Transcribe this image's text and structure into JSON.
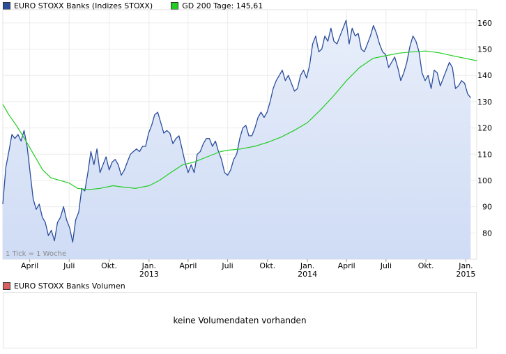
{
  "legend": {
    "price_label": "EURO STOXX Banks (Indizes STOXX)",
    "ma_label": "GD 200 Tage: 145,61",
    "price_color": "#2a4d9c",
    "ma_color": "#22cc22"
  },
  "volume": {
    "legend_label": "EURO STOXX Banks Volumen",
    "legend_color": "#d96060",
    "message": "keine Volumendaten vorhanden"
  },
  "footnote": "1 Tick = 1 Woche",
  "chart_data": {
    "type": "line",
    "title": "",
    "xlabel": "",
    "ylabel": "",
    "ylim": [
      70,
      165
    ],
    "y_ticks": [
      80,
      90,
      100,
      110,
      120,
      130,
      140,
      150,
      160
    ],
    "x_range": [
      "2012-01-30",
      "2015-01-26"
    ],
    "x_ticks": [
      {
        "date": "2012-04-01",
        "label": "April",
        "sub": ""
      },
      {
        "date": "2012-07-01",
        "label": "Juli",
        "sub": ""
      },
      {
        "date": "2012-10-01",
        "label": "Okt.",
        "sub": ""
      },
      {
        "date": "2013-01-01",
        "label": "Jan.",
        "sub": "2013"
      },
      {
        "date": "2013-04-01",
        "label": "April",
        "sub": ""
      },
      {
        "date": "2013-07-01",
        "label": "Juli",
        "sub": ""
      },
      {
        "date": "2013-10-01",
        "label": "Okt.",
        "sub": ""
      },
      {
        "date": "2014-01-01",
        "label": "Jan.",
        "sub": "2014"
      },
      {
        "date": "2014-04-01",
        "label": "April",
        "sub": ""
      },
      {
        "date": "2014-07-01",
        "label": "Juli",
        "sub": ""
      },
      {
        "date": "2014-10-01",
        "label": "Okt.",
        "sub": ""
      },
      {
        "date": "2015-01-01",
        "label": "Jan.",
        "sub": "2015"
      }
    ],
    "grid": true,
    "series": [
      {
        "name": "EURO STOXX Banks (Indizes STOXX)",
        "color": "#2a4d9c",
        "fill": "#dde8fa",
        "points": [
          [
            "2012-01-30",
            91
          ],
          [
            "2012-02-06",
            105
          ],
          [
            "2012-02-13",
            111
          ],
          [
            "2012-02-20",
            117.5
          ],
          [
            "2012-02-27",
            116
          ],
          [
            "2012-03-05",
            117.5
          ],
          [
            "2012-03-12",
            115
          ],
          [
            "2012-03-19",
            119
          ],
          [
            "2012-03-26",
            113
          ],
          [
            "2012-04-02",
            103
          ],
          [
            "2012-04-09",
            93
          ],
          [
            "2012-04-16",
            89
          ],
          [
            "2012-04-23",
            91
          ],
          [
            "2012-04-30",
            86
          ],
          [
            "2012-05-07",
            84
          ],
          [
            "2012-05-14",
            79
          ],
          [
            "2012-05-21",
            81
          ],
          [
            "2012-05-28",
            77
          ],
          [
            "2012-06-04",
            84
          ],
          [
            "2012-06-11",
            86
          ],
          [
            "2012-06-18",
            90
          ],
          [
            "2012-06-25",
            85
          ],
          [
            "2012-07-02",
            82
          ],
          [
            "2012-07-09",
            76.5
          ],
          [
            "2012-07-16",
            85
          ],
          [
            "2012-07-23",
            88
          ],
          [
            "2012-07-30",
            97
          ],
          [
            "2012-08-06",
            96
          ],
          [
            "2012-08-13",
            103
          ],
          [
            "2012-08-20",
            111
          ],
          [
            "2012-08-27",
            106
          ],
          [
            "2012-09-03",
            112
          ],
          [
            "2012-09-10",
            103
          ],
          [
            "2012-09-17",
            106
          ],
          [
            "2012-09-24",
            109
          ],
          [
            "2012-10-01",
            104
          ],
          [
            "2012-10-08",
            107
          ],
          [
            "2012-10-15",
            108
          ],
          [
            "2012-10-22",
            106
          ],
          [
            "2012-10-29",
            102
          ],
          [
            "2012-11-05",
            104
          ],
          [
            "2012-11-12",
            107
          ],
          [
            "2012-11-19",
            110
          ],
          [
            "2012-11-26",
            111
          ],
          [
            "2012-12-03",
            112
          ],
          [
            "2012-12-10",
            111
          ],
          [
            "2012-12-17",
            113
          ],
          [
            "2012-12-24",
            113
          ],
          [
            "2012-12-31",
            118
          ],
          [
            "2013-01-07",
            121
          ],
          [
            "2013-01-14",
            125
          ],
          [
            "2013-01-21",
            126
          ],
          [
            "2013-01-28",
            122
          ],
          [
            "2013-02-04",
            118
          ],
          [
            "2013-02-11",
            119
          ],
          [
            "2013-02-18",
            118
          ],
          [
            "2013-02-25",
            114
          ],
          [
            "2013-03-04",
            116
          ],
          [
            "2013-03-11",
            117
          ],
          [
            "2013-03-18",
            112
          ],
          [
            "2013-03-25",
            107
          ],
          [
            "2013-04-01",
            103
          ],
          [
            "2013-04-08",
            106
          ],
          [
            "2013-04-15",
            103
          ],
          [
            "2013-04-22",
            110
          ],
          [
            "2013-04-29",
            111
          ],
          [
            "2013-05-06",
            114
          ],
          [
            "2013-05-13",
            116
          ],
          [
            "2013-05-20",
            116
          ],
          [
            "2013-05-27",
            113
          ],
          [
            "2013-06-03",
            115
          ],
          [
            "2013-06-10",
            111
          ],
          [
            "2013-06-17",
            108
          ],
          [
            "2013-06-24",
            103
          ],
          [
            "2013-07-01",
            102
          ],
          [
            "2013-07-08",
            104
          ],
          [
            "2013-07-15",
            108
          ],
          [
            "2013-07-22",
            110
          ],
          [
            "2013-07-29",
            116
          ],
          [
            "2013-08-05",
            120
          ],
          [
            "2013-08-12",
            121
          ],
          [
            "2013-08-19",
            117
          ],
          [
            "2013-08-26",
            117
          ],
          [
            "2013-09-02",
            120
          ],
          [
            "2013-09-09",
            124
          ],
          [
            "2013-09-16",
            126
          ],
          [
            "2013-09-23",
            124
          ],
          [
            "2013-09-30",
            126
          ],
          [
            "2013-10-07",
            130
          ],
          [
            "2013-10-14",
            135
          ],
          [
            "2013-10-21",
            138
          ],
          [
            "2013-10-28",
            140
          ],
          [
            "2013-11-04",
            142
          ],
          [
            "2013-11-11",
            138
          ],
          [
            "2013-11-18",
            140
          ],
          [
            "2013-11-25",
            137
          ],
          [
            "2013-12-02",
            134
          ],
          [
            "2013-12-09",
            135
          ],
          [
            "2013-12-16",
            140
          ],
          [
            "2013-12-23",
            142
          ],
          [
            "2013-12-30",
            139
          ],
          [
            "2014-01-06",
            144
          ],
          [
            "2014-01-13",
            152
          ],
          [
            "2014-01-20",
            155
          ],
          [
            "2014-01-27",
            149
          ],
          [
            "2014-02-03",
            150
          ],
          [
            "2014-02-10",
            155
          ],
          [
            "2014-02-17",
            153
          ],
          [
            "2014-02-24",
            158
          ],
          [
            "2014-03-03",
            153
          ],
          [
            "2014-03-10",
            152
          ],
          [
            "2014-03-17",
            155
          ],
          [
            "2014-03-24",
            158
          ],
          [
            "2014-03-31",
            161
          ],
          [
            "2014-04-07",
            152
          ],
          [
            "2014-04-14",
            158
          ],
          [
            "2014-04-21",
            155
          ],
          [
            "2014-04-28",
            156
          ],
          [
            "2014-05-05",
            150
          ],
          [
            "2014-05-12",
            149
          ],
          [
            "2014-05-19",
            152
          ],
          [
            "2014-05-26",
            155
          ],
          [
            "2014-06-02",
            159
          ],
          [
            "2014-06-09",
            156
          ],
          [
            "2014-06-16",
            152
          ],
          [
            "2014-06-23",
            149
          ],
          [
            "2014-06-30",
            148
          ],
          [
            "2014-07-07",
            143
          ],
          [
            "2014-07-14",
            145
          ],
          [
            "2014-07-21",
            147
          ],
          [
            "2014-07-28",
            143
          ],
          [
            "2014-08-04",
            138
          ],
          [
            "2014-08-11",
            141
          ],
          [
            "2014-08-18",
            145
          ],
          [
            "2014-08-25",
            151
          ],
          [
            "2014-09-01",
            155
          ],
          [
            "2014-09-08",
            153
          ],
          [
            "2014-09-15",
            149
          ],
          [
            "2014-09-22",
            141
          ],
          [
            "2014-09-29",
            138
          ],
          [
            "2014-10-06",
            140
          ],
          [
            "2014-10-13",
            135
          ],
          [
            "2014-10-20",
            142
          ],
          [
            "2014-10-27",
            141
          ],
          [
            "2014-11-03",
            136
          ],
          [
            "2014-11-10",
            139
          ],
          [
            "2014-11-17",
            142
          ],
          [
            "2014-11-24",
            145
          ],
          [
            "2014-12-01",
            143
          ],
          [
            "2014-12-08",
            135
          ],
          [
            "2014-12-15",
            136
          ],
          [
            "2014-12-22",
            138
          ],
          [
            "2014-12-29",
            137
          ],
          [
            "2015-01-05",
            133
          ],
          [
            "2015-01-12",
            131.5
          ]
        ]
      },
      {
        "name": "GD 200 Tage: 145,61",
        "color": "#22cc22",
        "points": [
          [
            "2012-01-30",
            129
          ],
          [
            "2012-02-13",
            125
          ],
          [
            "2012-03-01",
            121
          ],
          [
            "2012-03-20",
            116
          ],
          [
            "2012-04-10",
            110
          ],
          [
            "2012-05-01",
            104
          ],
          [
            "2012-05-20",
            101
          ],
          [
            "2012-06-10",
            100
          ],
          [
            "2012-07-01",
            99
          ],
          [
            "2012-07-20",
            97
          ],
          [
            "2012-08-15",
            96.5
          ],
          [
            "2012-09-10",
            97
          ],
          [
            "2012-10-10",
            98
          ],
          [
            "2012-11-01",
            97.5
          ],
          [
            "2012-12-01",
            97
          ],
          [
            "2013-01-01",
            98
          ],
          [
            "2013-01-25",
            100
          ],
          [
            "2013-02-20",
            103
          ],
          [
            "2013-03-20",
            106
          ],
          [
            "2013-04-15",
            107
          ],
          [
            "2013-05-15",
            109
          ],
          [
            "2013-06-15",
            111
          ],
          [
            "2013-07-01",
            111.5
          ],
          [
            "2013-08-01",
            112
          ],
          [
            "2013-09-01",
            113
          ],
          [
            "2013-10-01",
            114.5
          ],
          [
            "2013-11-01",
            116.5
          ],
          [
            "2013-12-01",
            119
          ],
          [
            "2014-01-01",
            122
          ],
          [
            "2014-02-01",
            127
          ],
          [
            "2014-03-01",
            132
          ],
          [
            "2014-04-01",
            138
          ],
          [
            "2014-05-01",
            143
          ],
          [
            "2014-06-01",
            146.5
          ],
          [
            "2014-07-01",
            147.5
          ],
          [
            "2014-08-01",
            148.5
          ],
          [
            "2014-09-01",
            149
          ],
          [
            "2014-10-01",
            149.3
          ],
          [
            "2014-11-01",
            148.6
          ],
          [
            "2014-12-01",
            147.5
          ],
          [
            "2015-01-26",
            145.6
          ]
        ]
      }
    ]
  }
}
